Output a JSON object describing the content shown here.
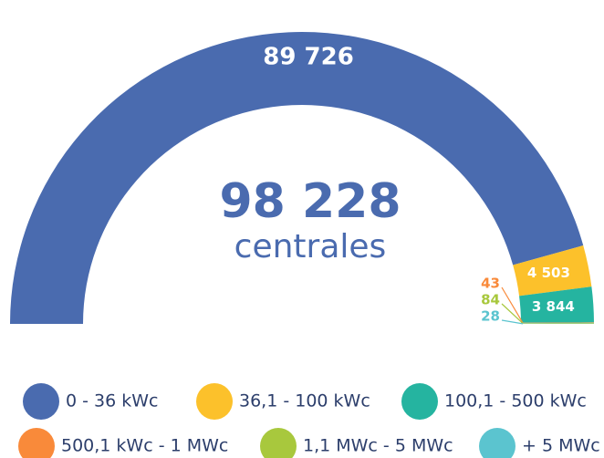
{
  "chart_data": {
    "type": "half-donut",
    "center_label": "98 228",
    "center_sublabel": "centrales",
    "categories": [
      "0 - 36 kWc",
      "36,1 - 100 kWc",
      "100,1 - 500 kWc",
      "500,1 kWc - 1 MWc",
      "1,1 MWc - 5 MWc",
      "+ 5 MWc"
    ],
    "values": [
      89726,
      4503,
      3844,
      43,
      84,
      28
    ],
    "value_labels": [
      "89 726",
      "4 503",
      "3 844",
      "43",
      "84",
      "28"
    ],
    "colors": [
      "#4a6baf",
      "#fcc12b",
      "#25b4a0",
      "#f98a3a",
      "#a8c83d",
      "#5bc4cf"
    ]
  }
}
